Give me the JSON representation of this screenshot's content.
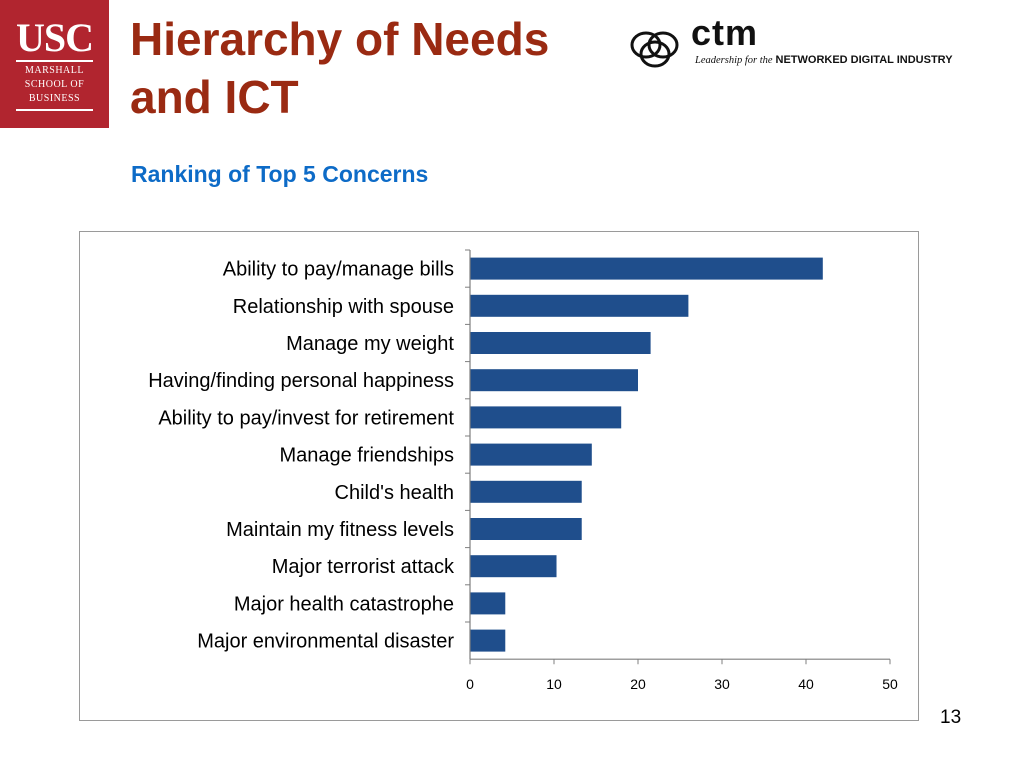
{
  "logos": {
    "usc": {
      "word": "USC",
      "school_lines": [
        "MARSHALL",
        "SCHOOL OF",
        "BUSINESS"
      ],
      "color": "#b1252f"
    },
    "ctm": {
      "word": "ctm",
      "tagline_lead": "Leadership for the",
      "tagline_strong": "NETWORKED DIGITAL INDUSTRY"
    }
  },
  "slide": {
    "title_line1": "Hierarchy of Needs",
    "title_line2": "and ICT",
    "subtitle": "Ranking of Top 5 Concerns",
    "page_number": "13"
  },
  "chart_data": {
    "type": "bar",
    "orientation": "horizontal",
    "title": "",
    "xlabel": "",
    "ylabel": "",
    "categories": [
      "Ability to pay/manage bills",
      "Relationship with spouse",
      "Manage my weight",
      "Having/finding personal happiness",
      "Ability to pay/invest for retirement",
      "Manage friendships",
      "Child's health",
      "Maintain my fitness levels",
      "Major terrorist attack",
      "Major health catastrophe",
      "Major environmental disaster"
    ],
    "values": [
      42,
      26,
      21.5,
      20,
      18,
      14.5,
      13.3,
      13.3,
      10.3,
      4.2,
      4.2
    ],
    "xlim": [
      0,
      50
    ],
    "xticks": [
      0,
      10,
      20,
      30,
      40,
      50
    ],
    "grid": false,
    "legend": "none",
    "bar_color": "#1f4e8c"
  }
}
